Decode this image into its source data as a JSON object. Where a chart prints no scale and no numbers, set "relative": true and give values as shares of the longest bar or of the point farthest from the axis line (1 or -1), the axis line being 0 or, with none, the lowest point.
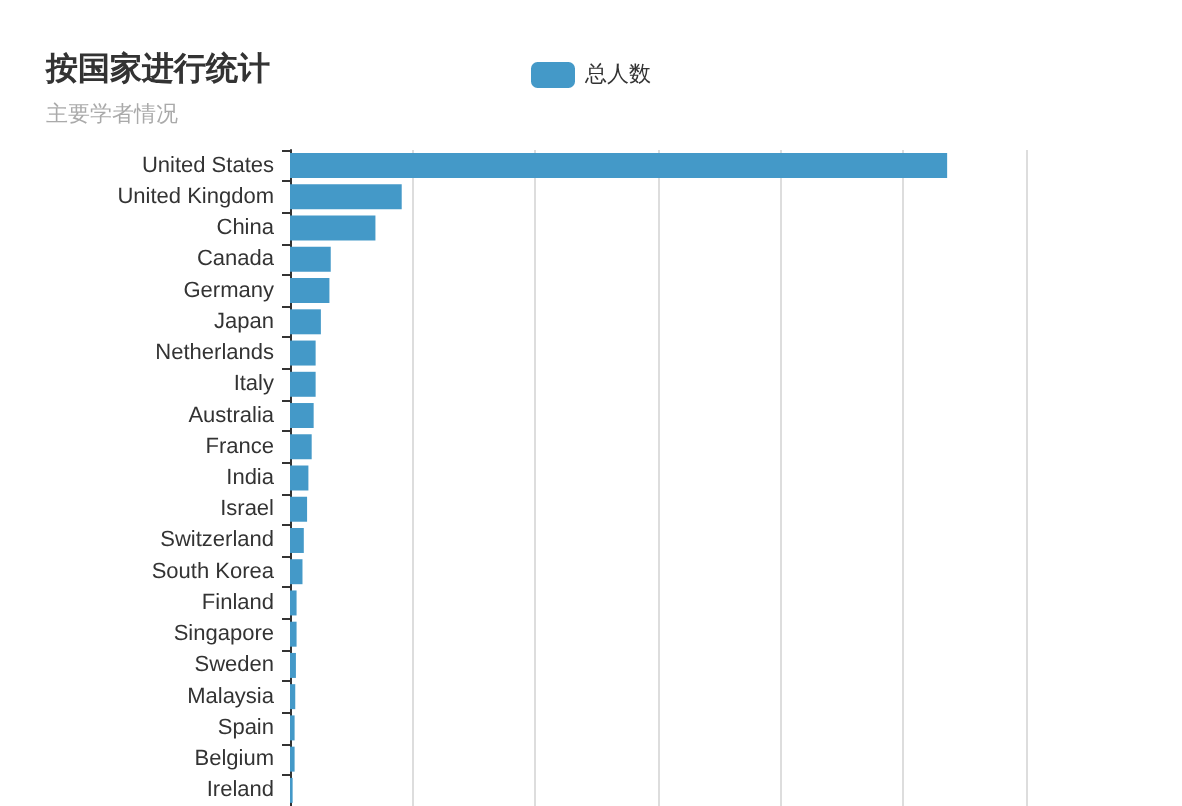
{
  "chart_data": {
    "type": "bar",
    "orientation": "horizontal",
    "relative": true,
    "title": "按国家进行统计",
    "subtitle": "主要学者情况",
    "categories": [
      "United States",
      "United Kingdom",
      "China",
      "Canada",
      "Germany",
      "Japan",
      "Netherlands",
      "Italy",
      "Australia",
      "France",
      "India",
      "Israel",
      "Switzerland",
      "South Korea",
      "Finland",
      "Singapore",
      "Sweden",
      "Malaysia",
      "Spain",
      "Belgium",
      "Ireland"
    ],
    "series": [
      {
        "name": "总人数",
        "color": "#4499c8",
        "values": [
          1,
          0.17,
          0.13,
          0.062,
          0.06,
          0.047,
          0.039,
          0.039,
          0.036,
          0.033,
          0.028,
          0.026,
          0.021,
          0.019,
          0.01,
          0.01,
          0.009,
          0.008,
          0.007,
          0.007,
          0.004
        ]
      }
    ],
    "grid": "x",
    "legend": "top"
  }
}
